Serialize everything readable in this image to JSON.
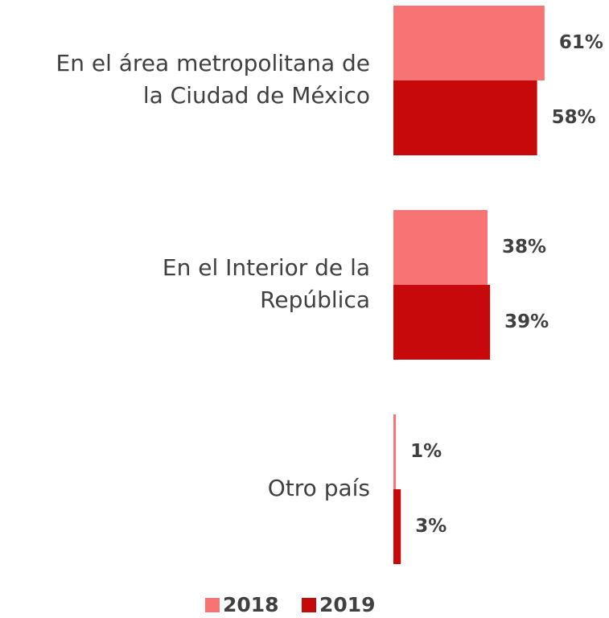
{
  "chart_data": {
    "type": "bar",
    "orientation": "horizontal",
    "categories": [
      "En el área metropolitana de\nla Ciudad de México",
      "En el Interior de la\nRepública",
      "Otro país"
    ],
    "series": [
      {
        "name": "2018",
        "color": "#f87474",
        "values": [
          61,
          38,
          1
        ],
        "value_labels": [
          "61%",
          "38%",
          "1%"
        ]
      },
      {
        "name": "2019",
        "color": "#c8090b",
        "values": [
          58,
          39,
          3
        ],
        "value_labels": [
          "58%",
          "39%",
          "3%"
        ]
      }
    ],
    "legend": "bottom"
  }
}
